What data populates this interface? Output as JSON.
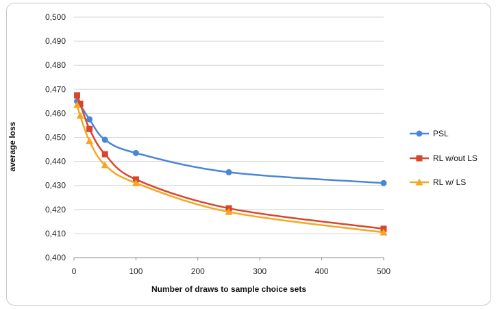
{
  "chart_data": {
    "type": "line",
    "xlabel": "Number of draws to sample choice sets",
    "ylabel": "average loss",
    "xlim": [
      0,
      500
    ],
    "ylim": [
      0.4,
      0.5
    ],
    "xticks": [
      0,
      100,
      200,
      300,
      400,
      500
    ],
    "yticks": [
      "0,400",
      "0,410",
      "0,420",
      "0,430",
      "0,440",
      "0,450",
      "0,460",
      "0,470",
      "0,480",
      "0,490",
      "0,500"
    ],
    "grid": "horizontal",
    "legend_position": "right",
    "x": [
      5,
      10,
      25,
      50,
      100,
      250,
      500
    ],
    "series": [
      {
        "name": "PSL",
        "color": "#4a86d8",
        "marker": "circle",
        "values": [
          0.465,
          0.4635,
          0.4575,
          0.449,
          0.4435,
          0.4355,
          0.431
        ]
      },
      {
        "name": "RL w/out LS",
        "color": "#d9452b",
        "marker": "square",
        "values": [
          0.4675,
          0.464,
          0.4535,
          0.443,
          0.4325,
          0.4205,
          0.412
        ]
      },
      {
        "name": "RL w/ LS",
        "color": "#f5a623",
        "marker": "triangle",
        "values": [
          0.4635,
          0.459,
          0.4485,
          0.4385,
          0.431,
          0.419,
          0.4105
        ]
      }
    ]
  }
}
